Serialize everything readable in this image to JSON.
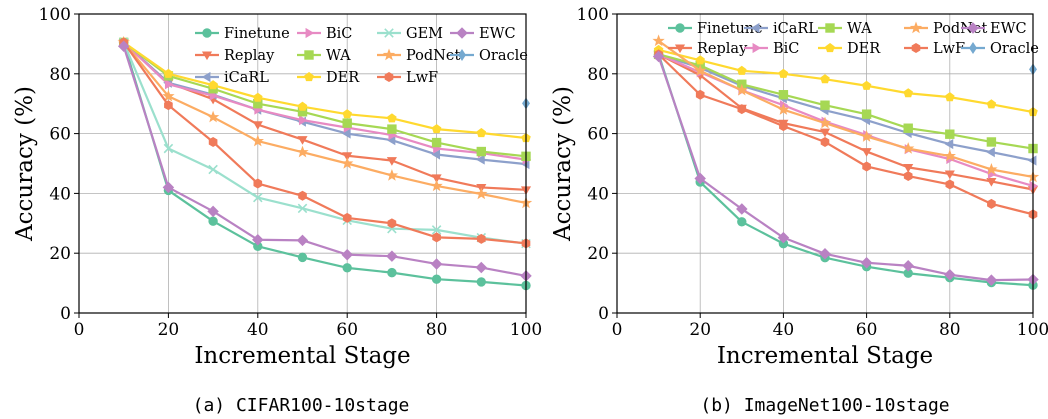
{
  "styles": {
    "Finetune": {
      "color": "#5cc19c",
      "marker": "circle"
    },
    "Replay": {
      "color": "#f07a5a",
      "marker": "tri-down"
    },
    "iCaRL": {
      "color": "#8da0cb",
      "marker": "tri-left"
    },
    "BiC": {
      "color": "#e78ac3",
      "marker": "tri-right"
    },
    "WA": {
      "color": "#a6d854",
      "marker": "square"
    },
    "DER": {
      "color": "#ffd92f",
      "marker": "pentagon"
    },
    "GEM": {
      "color": "#9be0cd",
      "marker": "x"
    },
    "PodNet": {
      "color": "#fcac63",
      "marker": "star"
    },
    "LwF": {
      "color": "#f07a5a",
      "marker": "hexagon"
    },
    "EWC": {
      "color": "#b982c3",
      "marker": "diamond"
    },
    "Oracle": {
      "color": "#75a9d0",
      "marker": "thin-diamond"
    }
  },
  "chart_data": [
    {
      "type": "line",
      "caption": "(a) CIFAR100-10stage",
      "xlabel": "Incremental Stage",
      "ylabel": "Accuracy (%)",
      "xlim": [
        0,
        100
      ],
      "ylim": [
        0,
        100
      ],
      "xticks": [
        "0",
        "20",
        "40",
        "60",
        "80",
        "100"
      ],
      "yticks": [
        "0",
        "20",
        "40",
        "60",
        "80",
        "100"
      ],
      "grid": true,
      "legend_placement": "top-right",
      "legend_order": [
        "Finetune",
        "BiC",
        "GEM",
        "EWC",
        "Replay",
        "WA",
        "PodNet",
        "Oracle",
        "iCaRL",
        "DER",
        "LwF"
      ],
      "x": [
        10,
        20,
        30,
        40,
        50,
        60,
        70,
        80,
        90,
        100
      ],
      "series": [
        {
          "name": "Finetune",
          "values": [
            90.5,
            41,
            30.7,
            22.3,
            18.6,
            15.1,
            13.5,
            11.3,
            10.4,
            9.2
          ]
        },
        {
          "name": "Replay",
          "values": [
            90.5,
            77,
            71.5,
            63,
            58,
            52.6,
            51,
            45.2,
            42,
            41.2
          ]
        },
        {
          "name": "iCaRL",
          "values": [
            90.5,
            77,
            73,
            68,
            64,
            60,
            57.8,
            53,
            51.3,
            49.8
          ]
        },
        {
          "name": "BiC",
          "values": [
            90.5,
            76.5,
            72.7,
            68,
            64.5,
            62,
            59.5,
            55,
            53.5,
            51.3
          ]
        },
        {
          "name": "WA",
          "values": [
            90.5,
            79.3,
            75,
            70,
            67.3,
            63.5,
            61.5,
            57,
            54,
            52.4
          ]
        },
        {
          "name": "DER",
          "values": [
            90.5,
            80,
            76.2,
            72,
            69,
            66.5,
            65.1,
            61.5,
            60.2,
            58.5
          ]
        },
        {
          "name": "GEM",
          "values": [
            90.5,
            55,
            48,
            38.6,
            35,
            31,
            28.2,
            27.8,
            25.2,
            23.2
          ]
        },
        {
          "name": "PodNet",
          "values": [
            90.5,
            72.5,
            65.5,
            57.5,
            53.8,
            50,
            46,
            42.5,
            39.8,
            36.8
          ]
        },
        {
          "name": "LwF",
          "values": [
            90.5,
            69.5,
            57.2,
            43.3,
            39.2,
            31.8,
            30,
            25.3,
            24.8,
            23.3
          ]
        },
        {
          "name": "EWC",
          "values": [
            89.2,
            42,
            34,
            24.5,
            24.3,
            19.5,
            19,
            16.4,
            15.2,
            12.4
          ]
        },
        {
          "name": "Oracle",
          "x": [
            100
          ],
          "values": [
            70.1
          ]
        }
      ]
    },
    {
      "type": "line",
      "caption": "(b) ImageNet100-10stage",
      "xlabel": "Incremental Stage",
      "ylabel": "Accuracy (%)",
      "xlim": [
        0,
        100
      ],
      "ylim": [
        0,
        100
      ],
      "xticks": [
        "0",
        "20",
        "40",
        "60",
        "80",
        "100"
      ],
      "yticks": [
        "0",
        "20",
        "40",
        "60",
        "80",
        "100"
      ],
      "grid": true,
      "legend_placement": "top-right",
      "legend_order": [
        "Finetune",
        "iCaRL",
        "WA",
        "PodNet",
        "EWC",
        "Replay",
        "BiC",
        "DER",
        "LwF",
        "Oracle"
      ],
      "x": [
        10,
        20,
        30,
        40,
        50,
        60,
        70,
        80,
        90,
        100
      ],
      "series": [
        {
          "name": "Finetune",
          "values": [
            86.5,
            43.8,
            30.5,
            23.2,
            18.5,
            15.5,
            13.3,
            11.8,
            10.2,
            9.3
          ]
        },
        {
          "name": "Replay",
          "values": [
            86.5,
            79.5,
            68.5,
            63.5,
            60.5,
            54,
            48.7,
            46.5,
            44,
            41.3
          ]
        },
        {
          "name": "iCaRL",
          "values": [
            86.5,
            82,
            76,
            71.8,
            67.8,
            64.5,
            60.2,
            56.5,
            53.8,
            51
          ]
        },
        {
          "name": "BiC",
          "values": [
            86.5,
            80.5,
            74.5,
            69.5,
            64,
            59.5,
            54.8,
            51.5,
            46.5,
            42.5
          ]
        },
        {
          "name": "WA",
          "values": [
            86.5,
            82.8,
            76.5,
            73,
            69.5,
            66.5,
            61.8,
            59.8,
            57.2,
            55
          ]
        },
        {
          "name": "DER",
          "values": [
            88,
            84.5,
            81,
            80,
            78.2,
            76,
            73.5,
            72.2,
            69.8,
            67.2
          ]
        },
        {
          "name": "PodNet",
          "values": [
            91,
            81,
            74.5,
            68,
            63.5,
            59,
            55,
            52.5,
            48,
            45.5
          ]
        },
        {
          "name": "LwF",
          "values": [
            86.5,
            73,
            68.2,
            62.5,
            57.2,
            49,
            45.8,
            43,
            36.5,
            33
          ]
        },
        {
          "name": "EWC",
          "values": [
            85.8,
            45,
            34.8,
            25.2,
            19.8,
            16.8,
            15.8,
            12.8,
            11,
            11.2
          ]
        },
        {
          "name": "Oracle",
          "x": [
            100
          ],
          "values": [
            81.5
          ]
        }
      ]
    }
  ]
}
